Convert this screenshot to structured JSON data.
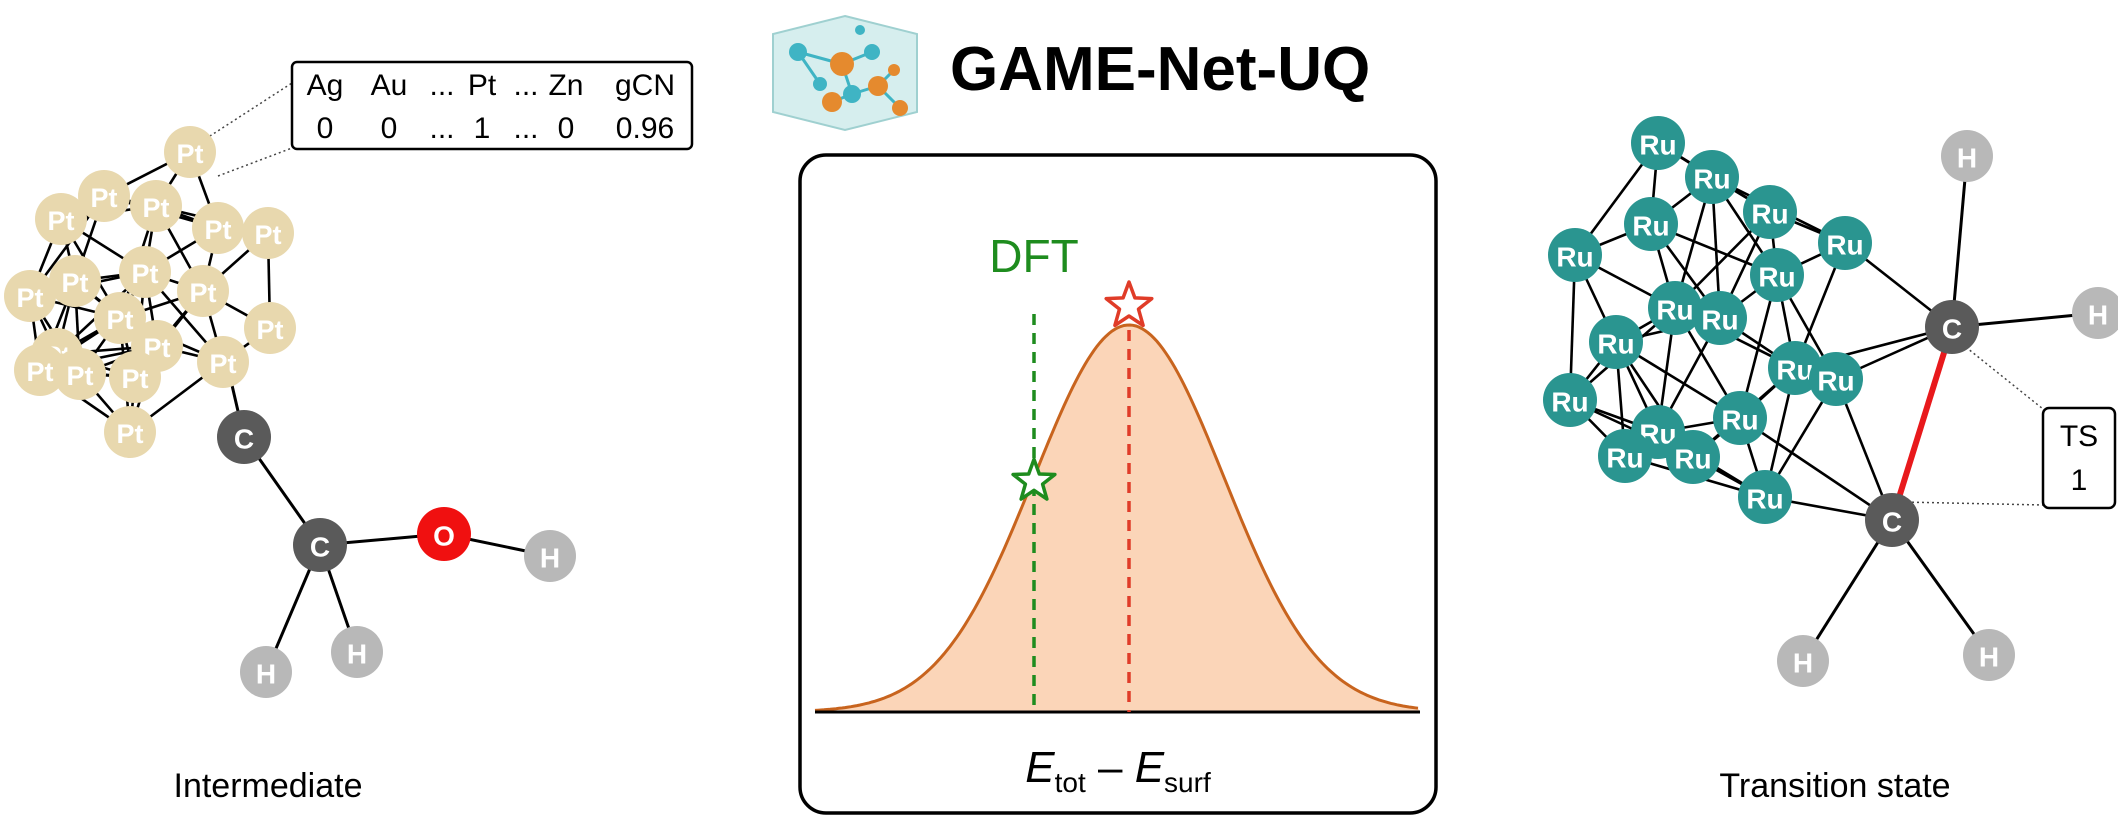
{
  "title": "GAME-Net-UQ",
  "left_panel": {
    "caption": "Intermediate",
    "feature_table": {
      "headers": [
        "Ag",
        "Au",
        "...",
        "Pt",
        "...",
        "Zn",
        "gCN"
      ],
      "values": [
        "0",
        "0",
        "...",
        "1",
        "...",
        "0",
        "0.96"
      ]
    },
    "metal_label": "Pt",
    "carbon_label": "C",
    "oxygen_label": "O",
    "hydrogen_label": "H"
  },
  "center_panel": {
    "dft_label": "DFT",
    "axis_label": {
      "E": "E",
      "tot": "tot",
      "minus": " – ",
      "surf": "surf"
    },
    "colors": {
      "curve": "#c8641e",
      "fill": "#fbd5b8",
      "dft": "#1e8c1e",
      "prediction": "#e03c28"
    }
  },
  "right_panel": {
    "caption": "Transition state",
    "ts_box": {
      "line1": "TS",
      "line2": "1"
    },
    "metal_label": "Ru",
    "carbon_label": "C",
    "hydrogen_label": "H",
    "colors": {
      "ruthenium": "#2a9590",
      "ts_bond": "#e8191c"
    }
  },
  "colors": {
    "platinum": "#e8d8ae",
    "carbon": "#5a5a5a",
    "oxygen": "#f01010",
    "hydrogen": "#b8b8b8"
  }
}
